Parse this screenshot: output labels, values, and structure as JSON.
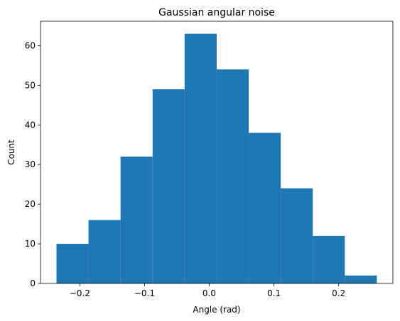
{
  "chart_data": {
    "type": "bar",
    "title": "Gaussian angular noise",
    "xlabel": "Angle (rad)",
    "ylabel": "Count",
    "bin_edges": [
      -0.236,
      -0.1865,
      -0.137,
      -0.0875,
      -0.038,
      0.0115,
      0.061,
      0.1105,
      0.16,
      0.2095,
      0.259
    ],
    "values": [
      10,
      16,
      32,
      49,
      63,
      54,
      38,
      24,
      12,
      2
    ],
    "xlim": [
      -0.2607,
      0.2838
    ],
    "ylim": [
      0,
      66.15
    ],
    "xticks": [
      -0.2,
      -0.1,
      0.0,
      0.1,
      0.2
    ],
    "xtick_labels": [
      "−0.2",
      "−0.1",
      "0.0",
      "0.1",
      "0.2"
    ],
    "yticks": [
      0,
      10,
      20,
      30,
      40,
      50,
      60
    ],
    "ytick_labels": [
      "0",
      "10",
      "20",
      "30",
      "40",
      "50",
      "60"
    ],
    "bar_color": "#1f77b4",
    "grid": false,
    "legend": false
  }
}
